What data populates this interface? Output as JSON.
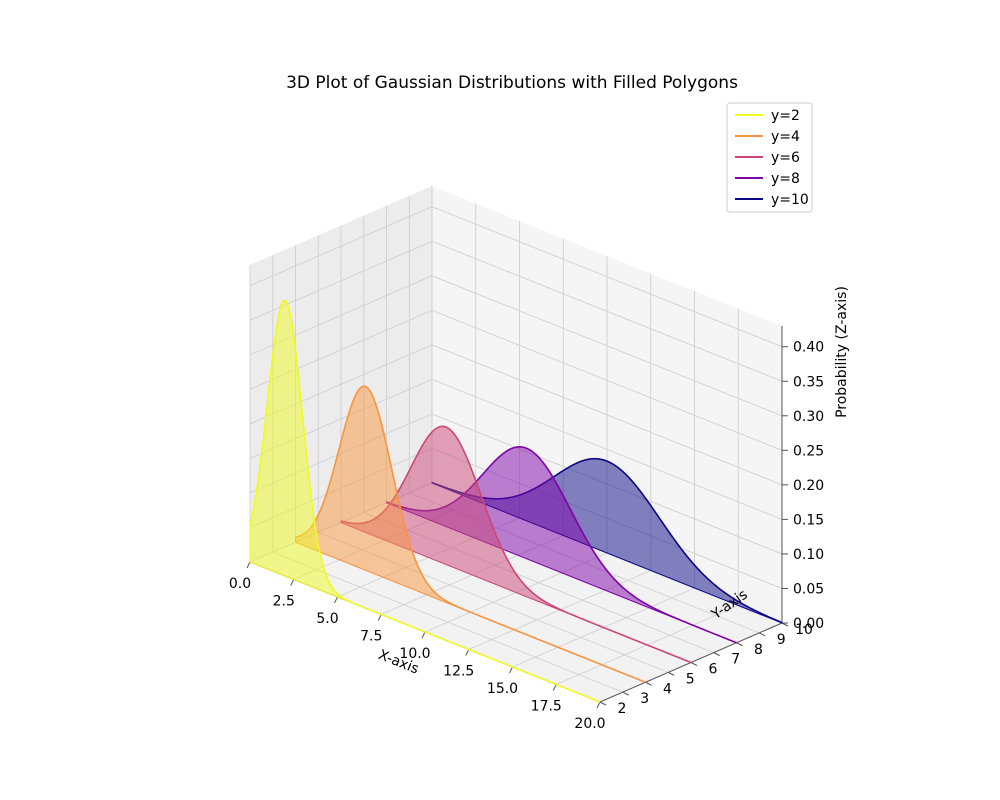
{
  "chart_data": {
    "type": "3d-line",
    "title": "3D Plot of Gaussian Distributions with Filled Polygons",
    "xlabel": "X-axis",
    "ylabel": "Y-axis",
    "zlabel": "Probability (Z-axis)",
    "xlim": [
      0,
      20
    ],
    "ylim": [
      2,
      10
    ],
    "zlim": [
      0,
      0.43
    ],
    "xticks": [
      "0.0",
      "2.5",
      "5.0",
      "7.5",
      "10.0",
      "12.5",
      "15.0",
      "17.5",
      "20.0"
    ],
    "yticks": [
      "2",
      "3",
      "4",
      "5",
      "6",
      "7",
      "8",
      "9",
      "10"
    ],
    "zticks": [
      "0.00",
      "0.05",
      "0.10",
      "0.15",
      "0.20",
      "0.25",
      "0.30",
      "0.35",
      "0.40"
    ],
    "grid": true,
    "legend_position": "top-right",
    "filled_polygons": true,
    "fill_alpha": 0.5,
    "series": [
      {
        "name": "y=2",
        "y": 2,
        "mean": 2,
        "std": 1,
        "peak": 0.399,
        "color": "#f0f921"
      },
      {
        "name": "y=4",
        "y": 4,
        "mean": 4,
        "std": 1.5,
        "peak": 0.266,
        "color": "#f89540"
      },
      {
        "name": "y=6",
        "y": 6,
        "mean": 6,
        "std": 2,
        "peak": 0.199,
        "color": "#cc4778"
      },
      {
        "name": "y=8",
        "y": 8,
        "mean": 8,
        "std": 2.5,
        "peak": 0.16,
        "color": "#7e03a8"
      },
      {
        "name": "y=10",
        "y": 10,
        "mean": 10,
        "std": 3,
        "peak": 0.133,
        "color": "#0d0887"
      }
    ]
  }
}
